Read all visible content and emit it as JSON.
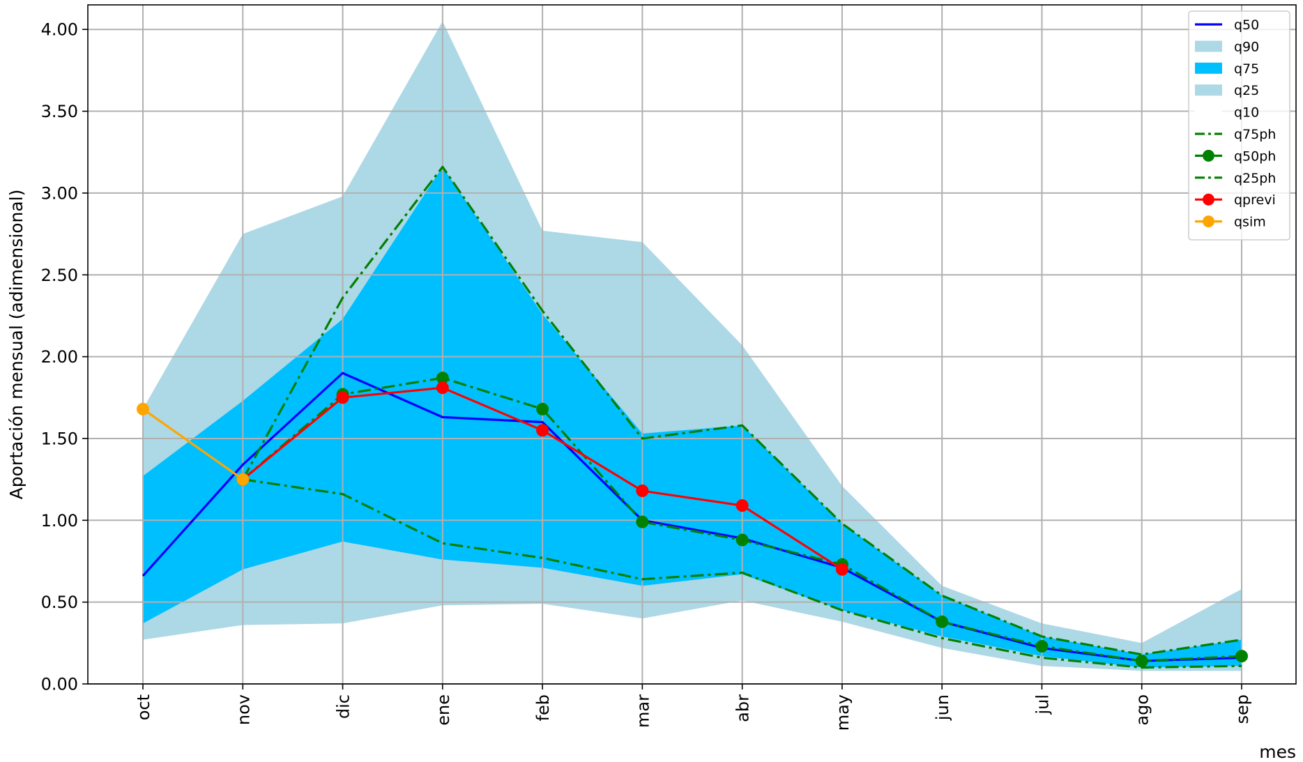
{
  "chart_data": {
    "type": "line",
    "xlabel": "mes",
    "ylabel": "Aportación mensual (adimensional)",
    "ylim": [
      0,
      4.15
    ],
    "yticks": [
      "0.00",
      "0.50",
      "1.00",
      "1.50",
      "2.00",
      "2.50",
      "3.00",
      "3.50",
      "4.00"
    ],
    "categories": [
      "oct",
      "nov",
      "dic",
      "ene",
      "feb",
      "mar",
      "abr",
      "may",
      "jun",
      "jul",
      "ago",
      "sep"
    ],
    "grid": true,
    "legend_position": "top-right",
    "bands": {
      "q10": [
        0.27,
        0.36,
        0.37,
        0.48,
        0.49,
        0.4,
        0.51,
        0.38,
        0.22,
        0.11,
        0.08,
        0.08
      ],
      "q25": [
        0.37,
        0.7,
        0.87,
        0.76,
        0.71,
        0.6,
        0.67,
        0.45,
        0.29,
        0.17,
        0.1,
        0.11
      ],
      "q75": [
        1.27,
        1.73,
        2.23,
        3.16,
        2.26,
        1.53,
        1.58,
        0.98,
        0.54,
        0.29,
        0.18,
        0.27
      ],
      "q90": [
        1.68,
        2.75,
        2.98,
        4.05,
        2.77,
        2.7,
        2.07,
        1.21,
        0.6,
        0.37,
        0.25,
        0.58
      ]
    },
    "series": [
      {
        "name": "q50",
        "color": "#0000ff",
        "style": "solid",
        "marker": false,
        "values": [
          0.66,
          1.34,
          1.9,
          1.63,
          1.6,
          1.0,
          0.89,
          0.71,
          0.38,
          0.22,
          0.14,
          0.16
        ]
      },
      {
        "name": "q75ph",
        "color": "#008000",
        "style": "dashdot",
        "marker": false,
        "values": [
          null,
          1.25,
          2.36,
          3.16,
          2.28,
          1.5,
          1.58,
          0.98,
          0.54,
          0.29,
          0.18,
          0.27
        ]
      },
      {
        "name": "q50ph",
        "color": "#008000",
        "style": "dashdot",
        "marker": true,
        "values": [
          null,
          1.25,
          1.77,
          1.87,
          1.68,
          0.99,
          0.88,
          0.73,
          0.38,
          0.23,
          0.14,
          0.17
        ]
      },
      {
        "name": "q25ph",
        "color": "#008000",
        "style": "dashdot",
        "marker": false,
        "values": [
          null,
          1.25,
          1.16,
          0.86,
          0.77,
          0.64,
          0.68,
          0.45,
          0.28,
          0.16,
          0.1,
          0.11
        ]
      },
      {
        "name": "qprevi",
        "color": "#ff0000",
        "style": "solid",
        "marker": true,
        "values": [
          null,
          1.25,
          1.75,
          1.81,
          1.55,
          1.18,
          1.09,
          0.7,
          null,
          null,
          null,
          null
        ]
      },
      {
        "name": "qsim",
        "color": "#ffa500",
        "style": "solid",
        "marker": true,
        "values": [
          1.68,
          1.25,
          null,
          null,
          null,
          null,
          null,
          null,
          null,
          null,
          null,
          null
        ]
      }
    ],
    "legend": [
      {
        "label": "q50",
        "kind": "line",
        "color": "#0000ff",
        "style": "solid",
        "marker": false
      },
      {
        "label": "q90",
        "kind": "patch",
        "color": "#add8e6"
      },
      {
        "label": "q75",
        "kind": "patch",
        "color": "#00bfff"
      },
      {
        "label": "q25",
        "kind": "patch",
        "color": "#add8e6"
      },
      {
        "label": "q10",
        "kind": "patch",
        "color": "#ffffff"
      },
      {
        "label": "q75ph",
        "kind": "line",
        "color": "#008000",
        "style": "dashdot",
        "marker": false
      },
      {
        "label": "q50ph",
        "kind": "line",
        "color": "#008000",
        "style": "dashdot",
        "marker": true
      },
      {
        "label": "q25ph",
        "kind": "line",
        "color": "#008000",
        "style": "dashdot",
        "marker": false
      },
      {
        "label": "qprevi",
        "kind": "line",
        "color": "#ff0000",
        "style": "solid",
        "marker": true
      },
      {
        "label": "qsim",
        "kind": "line",
        "color": "#ffa500",
        "style": "solid",
        "marker": true
      }
    ],
    "colors": {
      "outer_band": "#add8e6",
      "inner_band": "#00bfff",
      "grid": "#b0b0b0"
    }
  }
}
